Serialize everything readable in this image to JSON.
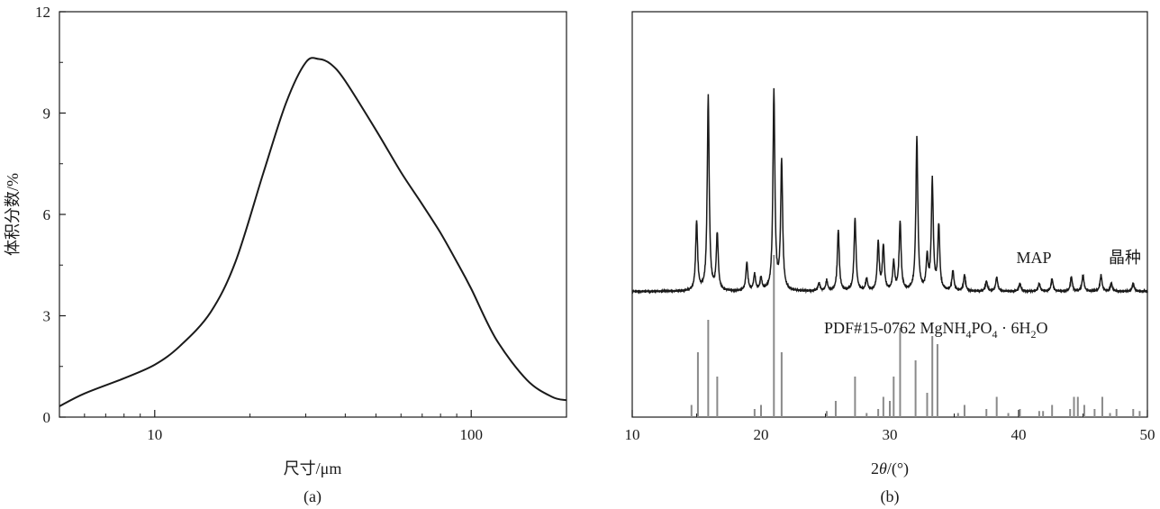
{
  "chart_data": [
    {
      "type": "line",
      "panel_label": "(a)",
      "xlabel": "尺寸/μm",
      "ylabel": "体积分数/%",
      "xscale": "log",
      "xlim": [
        5,
        200
      ],
      "ylim": [
        0,
        12
      ],
      "xticks": [
        10,
        100
      ],
      "yticks": [
        0,
        3,
        6,
        9,
        12
      ],
      "grid": false,
      "series": [
        {
          "x": [
            5,
            6,
            8,
            10,
            12,
            15,
            18,
            22,
            26,
            30,
            33,
            36,
            40,
            50,
            60,
            70,
            80,
            90,
            100,
            120,
            150,
            180,
            200
          ],
          "y": [
            0.32,
            0.7,
            1.15,
            1.55,
            2.1,
            3.1,
            4.6,
            7.2,
            9.3,
            10.5,
            10.6,
            10.45,
            9.95,
            8.5,
            7.25,
            6.3,
            5.45,
            4.6,
            3.8,
            2.3,
            1.1,
            0.6,
            0.5
          ]
        }
      ]
    },
    {
      "type": "line",
      "panel_label": "(b)",
      "xlabel_prefix": "2",
      "xlabel_theta": "θ",
      "xlabel_suffix": "/(°)",
      "xlim": [
        10,
        50
      ],
      "ylim": [
        0,
        1
      ],
      "xticks": [
        10,
        20,
        30,
        40,
        50
      ],
      "yticks": [],
      "grid": false,
      "annotations": {
        "map": "MAP",
        "crystal": "晶种",
        "pdf_prefix": "PDF#15-0762 MgNH",
        "pdf_sub1": "4",
        "pdf_mid": "PO",
        "pdf_sub2": "4",
        "pdf_dot": " · 6H",
        "pdf_sub3": "2",
        "pdf_end": "O"
      },
      "series": [
        {
          "kind": "pattern",
          "baseline": 0.31,
          "peaks": [
            {
              "x": 15.0,
              "h": 0.17
            },
            {
              "x": 15.9,
              "h": 0.48
            },
            {
              "x": 16.6,
              "h": 0.14
            },
            {
              "x": 18.9,
              "h": 0.07
            },
            {
              "x": 19.5,
              "h": 0.04
            },
            {
              "x": 20.0,
              "h": 0.03
            },
            {
              "x": 21.0,
              "h": 0.49
            },
            {
              "x": 21.6,
              "h": 0.32
            },
            {
              "x": 24.5,
              "h": 0.02
            },
            {
              "x": 25.1,
              "h": 0.025
            },
            {
              "x": 26.0,
              "h": 0.15
            },
            {
              "x": 27.3,
              "h": 0.18
            },
            {
              "x": 28.2,
              "h": 0.03
            },
            {
              "x": 29.1,
              "h": 0.12
            },
            {
              "x": 29.5,
              "h": 0.11
            },
            {
              "x": 30.3,
              "h": 0.07
            },
            {
              "x": 30.8,
              "h": 0.17
            },
            {
              "x": 32.1,
              "h": 0.38
            },
            {
              "x": 32.9,
              "h": 0.08
            },
            {
              "x": 33.3,
              "h": 0.27
            },
            {
              "x": 33.8,
              "h": 0.16
            },
            {
              "x": 34.9,
              "h": 0.05
            },
            {
              "x": 35.8,
              "h": 0.04
            },
            {
              "x": 37.5,
              "h": 0.025
            },
            {
              "x": 38.3,
              "h": 0.035
            },
            {
              "x": 40.1,
              "h": 0.02
            },
            {
              "x": 41.6,
              "h": 0.02
            },
            {
              "x": 42.6,
              "h": 0.03
            },
            {
              "x": 44.1,
              "h": 0.035
            },
            {
              "x": 45.0,
              "h": 0.04
            },
            {
              "x": 46.4,
              "h": 0.04
            },
            {
              "x": 47.2,
              "h": 0.02
            },
            {
              "x": 48.9,
              "h": 0.02
            }
          ]
        },
        {
          "kind": "reference-sticks",
          "x": [
            14.6,
            15.1,
            15.9,
            16.6,
            19.5,
            20.0,
            21.0,
            21.6,
            25.1,
            25.8,
            27.3,
            28.2,
            29.1,
            29.5,
            30.0,
            30.3,
            30.8,
            32.0,
            32.9,
            33.3,
            33.7,
            35.3,
            35.8,
            37.5,
            38.3,
            39.2,
            40.1,
            41.6,
            41.9,
            42.6,
            44.0,
            44.3,
            44.6,
            45.1,
            45.9,
            46.5,
            47.1,
            47.6,
            48.9,
            49.4
          ],
          "y": [
            0.03,
            0.16,
            0.24,
            0.1,
            0.02,
            0.03,
            0.4,
            0.16,
            0.015,
            0.04,
            0.1,
            0.01,
            0.02,
            0.05,
            0.04,
            0.1,
            0.22,
            0.14,
            0.06,
            0.2,
            0.18,
            0.01,
            0.03,
            0.02,
            0.05,
            0.01,
            0.02,
            0.015,
            0.015,
            0.03,
            0.02,
            0.05,
            0.05,
            0.03,
            0.02,
            0.05,
            0.01,
            0.02,
            0.02,
            0.015
          ]
        }
      ]
    }
  ]
}
